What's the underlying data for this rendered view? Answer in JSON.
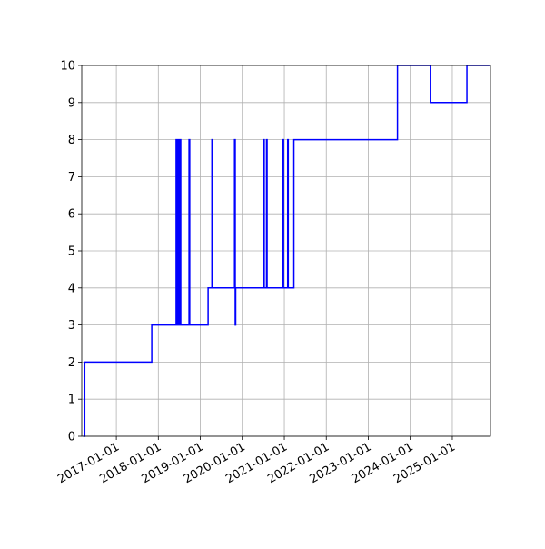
{
  "chart_data": {
    "type": "line",
    "step": "post",
    "grid": true,
    "series": [
      {
        "color": "#0000ff",
        "x": [
          "2016-03-20",
          "2016-04-01",
          "2017-11-05",
          "2018-06-05",
          "2018-06-12",
          "2018-06-18",
          "2018-06-28",
          "2018-07-05",
          "2018-07-15",
          "2018-09-25",
          "2018-10-01",
          "2019-03-10",
          "2019-04-12",
          "2019-04-18",
          "2019-10-26",
          "2019-11-01",
          "2019-11-05",
          "2020-07-05",
          "2020-07-10",
          "2020-07-30",
          "2020-08-04",
          "2020-12-20",
          "2020-12-25",
          "2021-01-30",
          "2021-02-04",
          "2021-03-25",
          "2023-09-12",
          "2024-06-24",
          "2025-05-08",
          "2025-11-20"
        ],
        "values": [
          0,
          2,
          3,
          8,
          3,
          8,
          3,
          8,
          3,
          8,
          3,
          4,
          8,
          4,
          8,
          3,
          4,
          8,
          4,
          8,
          4,
          8,
          4,
          8,
          4,
          8,
          10,
          9,
          10,
          10
        ]
      }
    ],
    "xlim": [
      "2016-03-06",
      "2025-11-29"
    ],
    "xticks": [
      "2017-01-01",
      "2018-01-01",
      "2019-01-01",
      "2020-01-01",
      "2021-01-01",
      "2022-01-01",
      "2023-01-01",
      "2024-01-01",
      "2025-01-01"
    ],
    "ylim": [
      0,
      10
    ],
    "yticks": [
      0,
      1,
      2,
      3,
      4,
      5,
      6,
      7,
      8,
      9,
      10
    ]
  }
}
